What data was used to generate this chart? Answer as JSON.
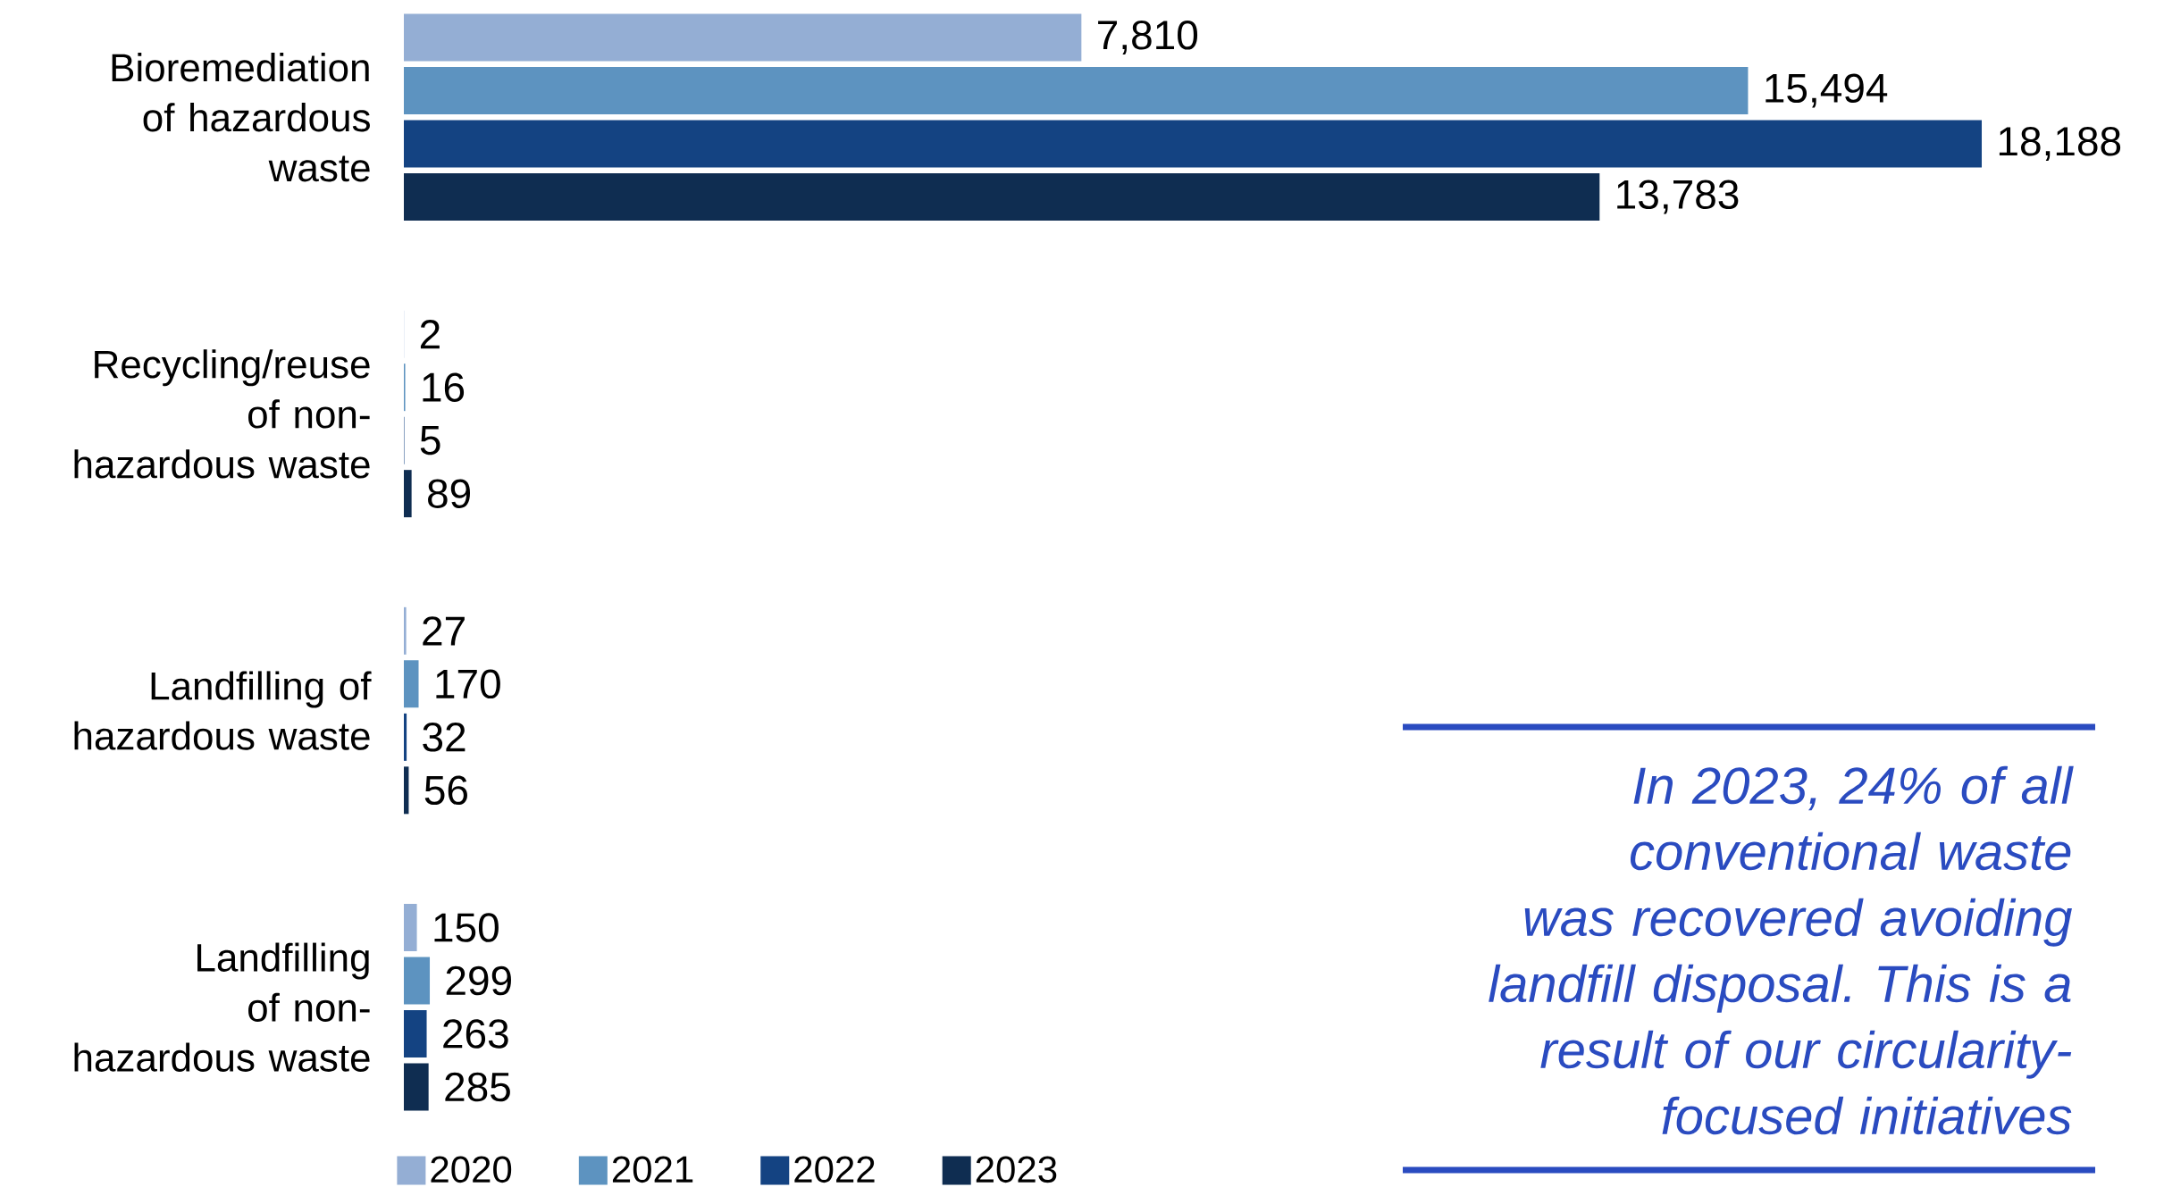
{
  "chart_data": {
    "type": "bar",
    "orientation": "horizontal",
    "categories": [
      "Bioremediation of hazardous waste",
      "Recycling/reuse of non-hazardous waste",
      "Landfilling of hazardous waste",
      "Landfilling of non-hazardous waste"
    ],
    "series": [
      {
        "name": "2020",
        "color": "#94aed4",
        "values": [
          7810,
          2,
          27,
          150
        ],
        "value_labels": [
          "7,810",
          "2",
          "27",
          "150"
        ]
      },
      {
        "name": "2021",
        "color": "#5d93c0",
        "values": [
          15494,
          16,
          170,
          299
        ],
        "value_labels": [
          "15,494",
          "16",
          "170",
          "299"
        ]
      },
      {
        "name": "2022",
        "color": "#144382",
        "values": [
          18188,
          5,
          32,
          263
        ],
        "value_labels": [
          "18,188",
          "5",
          "32",
          "263"
        ]
      },
      {
        "name": "2023",
        "color": "#0f2d51",
        "values": [
          13783,
          89,
          56,
          285
        ],
        "value_labels": [
          "13,783",
          "89",
          "56",
          "285"
        ]
      }
    ],
    "legend": "bottom",
    "annotations": [
      "In 2023, 24% of all conventional waste was recovered avoiding landfill disposal. This is a result of our circularity-focused initiatives"
    ]
  }
}
